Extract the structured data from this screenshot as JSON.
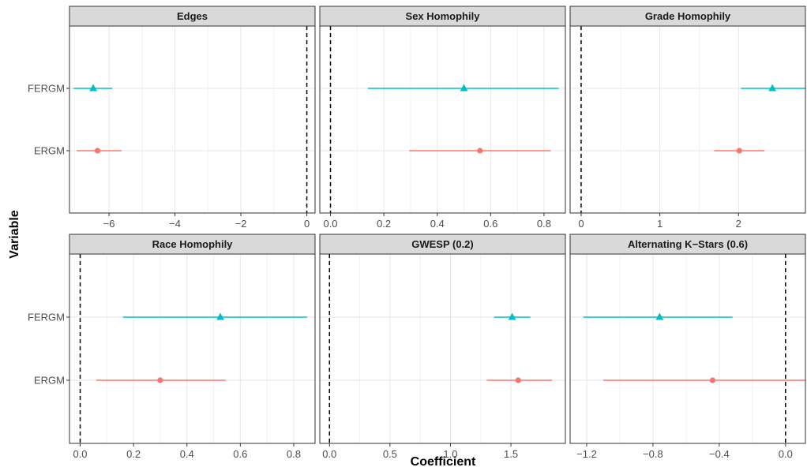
{
  "chart_data": {
    "type": "scatter",
    "subtype": "coefficient-plot-with-intervals",
    "xlabel": "Coefficient",
    "ylabel": "Variable",
    "categories": [
      "FERGM",
      "ERGM"
    ],
    "grid": true,
    "reference_line": 0,
    "colors": {
      "FERGM": "#00bfc4",
      "ERGM": "#f8766d"
    },
    "markers": {
      "FERGM": "triangle",
      "ERGM": "circle"
    },
    "panels": [
      {
        "title": "Edges",
        "xlim": [
          -7.2,
          0.25
        ],
        "xticks": [
          -6,
          -4,
          -2,
          0
        ],
        "xtick_labels": [
          "−6",
          "−4",
          "−2",
          "0"
        ],
        "series": [
          {
            "name": "FERGM",
            "estimate": -6.48,
            "low": -7.08,
            "high": -5.9
          },
          {
            "name": "ERGM",
            "estimate": -6.35,
            "low": -6.98,
            "high": -5.62
          }
        ]
      },
      {
        "title": "Sex Homophily",
        "xlim": [
          -0.04,
          0.88
        ],
        "xticks": [
          0.0,
          0.2,
          0.4,
          0.6,
          0.8
        ],
        "xtick_labels": [
          "0.0",
          "0.2",
          "0.4",
          "0.6",
          "0.8"
        ],
        "series": [
          {
            "name": "FERGM",
            "estimate": 0.5,
            "low": 0.14,
            "high": 0.855
          },
          {
            "name": "ERGM",
            "estimate": 0.56,
            "low": 0.295,
            "high": 0.825
          }
        ]
      },
      {
        "title": "Grade Homophily",
        "xlim": [
          -0.14,
          2.85
        ],
        "xticks": [
          0,
          1,
          2
        ],
        "xtick_labels": [
          "0",
          "1",
          "2"
        ],
        "series": [
          {
            "name": "FERGM",
            "estimate": 2.43,
            "low": 2.03,
            "high": 2.85
          },
          {
            "name": "ERGM",
            "estimate": 2.01,
            "low": 1.69,
            "high": 2.33
          }
        ]
      },
      {
        "title": "Race Homophily",
        "xlim": [
          -0.04,
          0.88
        ],
        "xticks": [
          0.0,
          0.2,
          0.4,
          0.6,
          0.8
        ],
        "xtick_labels": [
          "0.0",
          "0.2",
          "0.4",
          "0.6",
          "0.8"
        ],
        "series": [
          {
            "name": "FERGM",
            "estimate": 0.525,
            "low": 0.16,
            "high": 0.85
          },
          {
            "name": "ERGM",
            "estimate": 0.3,
            "low": 0.06,
            "high": 0.545
          }
        ]
      },
      {
        "title": "GWESP (0.2)",
        "xlim": [
          -0.08,
          1.95
        ],
        "xticks": [
          0.0,
          0.5,
          1.0,
          1.5
        ],
        "xtick_labels": [
          "0.0",
          "0.5",
          "1.0",
          "1.5"
        ],
        "series": [
          {
            "name": "FERGM",
            "estimate": 1.51,
            "low": 1.36,
            "high": 1.66
          },
          {
            "name": "ERGM",
            "estimate": 1.56,
            "low": 1.3,
            "high": 1.84
          }
        ]
      },
      {
        "title": "Alternating K−Stars (0.6)",
        "xlim": [
          -1.3,
          0.12
        ],
        "xticks": [
          -1.2,
          -0.8,
          -0.4,
          0.0
        ],
        "xtick_labels": [
          "−1.2",
          "−0.8",
          "−0.4",
          "0.0"
        ],
        "series": [
          {
            "name": "FERGM",
            "estimate": -0.76,
            "low": -1.22,
            "high": -0.32
          },
          {
            "name": "ERGM",
            "estimate": -0.44,
            "low": -1.1,
            "high": 0.12
          }
        ]
      }
    ]
  }
}
